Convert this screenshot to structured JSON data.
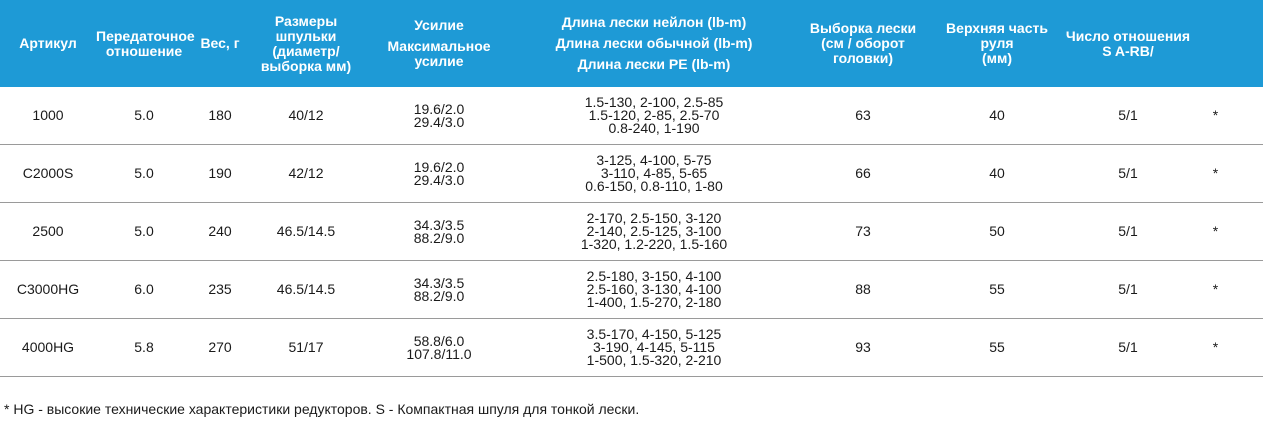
{
  "headers": {
    "article": "Артикул",
    "gear_ratio": [
      "Передаточное",
      "отношение"
    ],
    "weight": "Вес, г",
    "spool": [
      "Размеры шпульки",
      "(диаметр/",
      "выборка мм)"
    ],
    "drag_title": "Усилие",
    "drag_sub": [
      "Максимальное",
      "усилие"
    ],
    "line_nylon": "Длина лески нейлон (lb-m)",
    "line_regular": "Длина лески обычной (lb-m)",
    "line_pe": "Длина лески PE (lb-m)",
    "retrieve": [
      "Выборка лески",
      "(см / оборот",
      "головки)"
    ],
    "handle": [
      "Верхняя часть руля",
      "(мм)"
    ],
    "ratio_count": [
      "Число отношения",
      "S A-RB/"
    ]
  },
  "rows": [
    {
      "article": "1000",
      "gear": "5.0",
      "weight": "180",
      "spool": "40/12",
      "drag": [
        "19.6/2.0",
        "29.4/3.0"
      ],
      "line": [
        "1.5-130, 2-100, 2.5-85",
        "1.5-120, 2-85, 2.5-70",
        "0.8-240, 1-190"
      ],
      "retrieve": "63",
      "handle": "40",
      "ratio": "5/1",
      "mark": "*"
    },
    {
      "article": "C2000S",
      "gear": "5.0",
      "weight": "190",
      "spool": "42/12",
      "drag": [
        "19.6/2.0",
        "29.4/3.0"
      ],
      "line": [
        "3-125, 4-100, 5-75",
        "3-110, 4-85, 5-65",
        "0.6-150, 0.8-110, 1-80"
      ],
      "retrieve": "66",
      "handle": "40",
      "ratio": "5/1",
      "mark": "*"
    },
    {
      "article": "2500",
      "gear": "5.0",
      "weight": "240",
      "spool": "46.5/14.5",
      "drag": [
        "34.3/3.5",
        "88.2/9.0"
      ],
      "line": [
        "2-170, 2.5-150, 3-120",
        "2-140, 2.5-125, 3-100",
        "1-320, 1.2-220, 1.5-160"
      ],
      "retrieve": "73",
      "handle": "50",
      "ratio": "5/1",
      "mark": "*"
    },
    {
      "article": "C3000HG",
      "gear": "6.0",
      "weight": "235",
      "spool": "46.5/14.5",
      "drag": [
        "34.3/3.5",
        "88.2/9.0"
      ],
      "line": [
        "2.5-180, 3-150, 4-100",
        "2.5-160, 3-130, 4-100",
        "1-400, 1.5-270, 2-180"
      ],
      "retrieve": "88",
      "handle": "55",
      "ratio": "5/1",
      "mark": "*"
    },
    {
      "article": "4000HG",
      "gear": "5.8",
      "weight": "270",
      "spool": "51/17",
      "drag": [
        "58.8/6.0",
        "107.8/11.0"
      ],
      "line": [
        "3.5-170, 4-150, 5-125",
        "3-190, 4-145, 5-115",
        "1-500, 1.5-320, 2-210"
      ],
      "retrieve": "93",
      "handle": "55",
      "ratio": "5/1",
      "mark": "*"
    }
  ],
  "footnote": "* HG - высокие технические характеристики редукторов. S - Компактная шпуля для тонкой лески."
}
